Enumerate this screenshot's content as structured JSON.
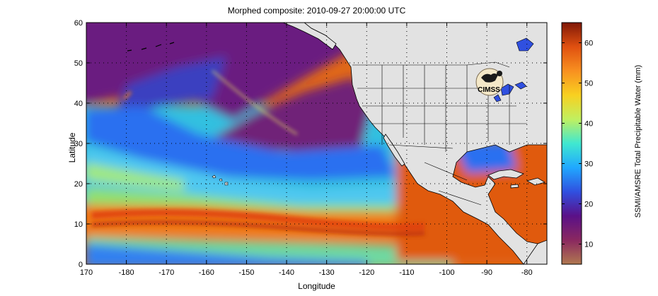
{
  "title": "Morphed composite: 2010-09-27 20:00:00 UTC",
  "axes": {
    "xlabel": "Longitude",
    "ylabel": "Latitude",
    "xticks": [
      {
        "value": 170,
        "label": "170"
      },
      {
        "value": 180,
        "label": "-180"
      },
      {
        "value": 190,
        "label": "-170"
      },
      {
        "value": 200,
        "label": "-160"
      },
      {
        "value": 210,
        "label": "-150"
      },
      {
        "value": 220,
        "label": "-140"
      },
      {
        "value": 230,
        "label": "-130"
      },
      {
        "value": 240,
        "label": "-120"
      },
      {
        "value": 250,
        "label": "-110"
      },
      {
        "value": 260,
        "label": "-100"
      },
      {
        "value": 270,
        "label": "-90"
      },
      {
        "value": 280,
        "label": "-80"
      }
    ],
    "yticks": [
      0,
      10,
      20,
      30,
      40,
      50,
      60
    ],
    "xlim": [
      170,
      285
    ],
    "ylim": [
      0,
      60
    ],
    "grid": "dotted"
  },
  "colorbar": {
    "label": "SSMI/AMSRE Total Precipitable Water (mm)",
    "ticks": [
      10,
      20,
      30,
      40,
      50,
      60
    ],
    "range": [
      5,
      65
    ],
    "colors": [
      "#b07850",
      "#8a2860",
      "#5a1088",
      "#3050e0",
      "#20a8ff",
      "#40e8d0",
      "#c0f060",
      "#f8d020",
      "#f89020",
      "#e05010",
      "#801808"
    ]
  },
  "logo": {
    "text": "CIMSS"
  }
}
